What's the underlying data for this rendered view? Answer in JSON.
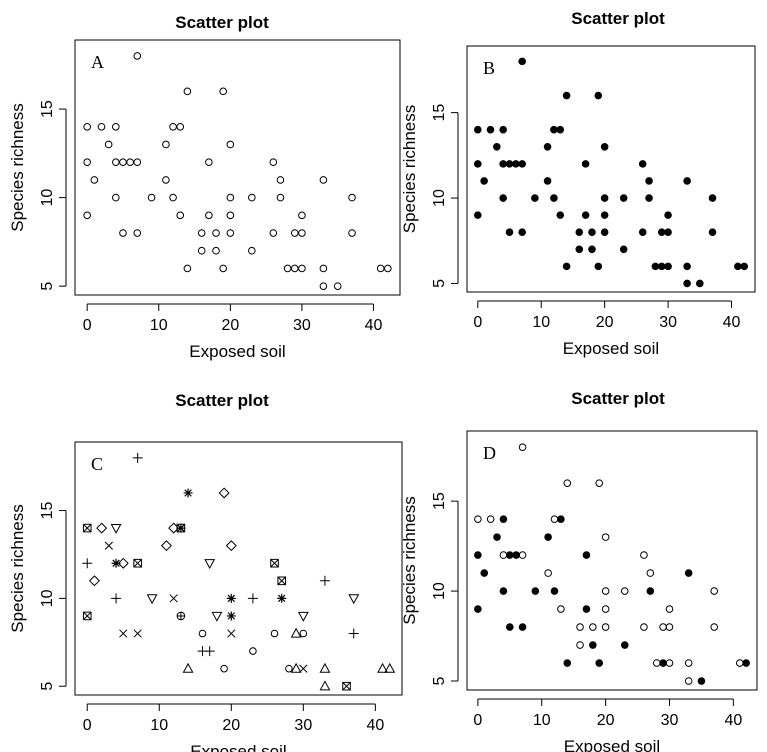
{
  "chart_data": [
    {
      "type": "scatter",
      "panel": "A",
      "title": "Scatter plot",
      "xlabel": "Exposed soil",
      "ylabel": "Species richness",
      "xlim": [
        -1.7,
        43.7
      ],
      "ylim": [
        4.5,
        18.9
      ],
      "xticks": [
        0,
        10,
        20,
        30,
        40
      ],
      "yticks": [
        5,
        10,
        15
      ],
      "grid": false,
      "legend": "none",
      "marker": "open-circle",
      "series": [
        {
          "points": [
            [
              0,
              14
            ],
            [
              0,
              12
            ],
            [
              0,
              9
            ],
            [
              1,
              11
            ],
            [
              2,
              14
            ],
            [
              3,
              13
            ],
            [
              4,
              14
            ],
            [
              4,
              12
            ],
            [
              4,
              10
            ],
            [
              5,
              12
            ],
            [
              5,
              8
            ],
            [
              6,
              12
            ],
            [
              7,
              18
            ],
            [
              7,
              12
            ],
            [
              7,
              8
            ],
            [
              9,
              10
            ],
            [
              11,
              13
            ],
            [
              11,
              11
            ],
            [
              12,
              14
            ],
            [
              12,
              10
            ],
            [
              13,
              14
            ],
            [
              13,
              9
            ],
            [
              14,
              16
            ],
            [
              14,
              6
            ],
            [
              16,
              8
            ],
            [
              16,
              7
            ],
            [
              17,
              12
            ],
            [
              17,
              9
            ],
            [
              18,
              8
            ],
            [
              18,
              7
            ],
            [
              19,
              16
            ],
            [
              19,
              6
            ],
            [
              20,
              13
            ],
            [
              20,
              10
            ],
            [
              20,
              9
            ],
            [
              20,
              8
            ],
            [
              23,
              10
            ],
            [
              23,
              7
            ],
            [
              26,
              12
            ],
            [
              26,
              8
            ],
            [
              27,
              11
            ],
            [
              27,
              10
            ],
            [
              28,
              6
            ],
            [
              29,
              8
            ],
            [
              29,
              6
            ],
            [
              30,
              9
            ],
            [
              30,
              8
            ],
            [
              30,
              6
            ],
            [
              33,
              11
            ],
            [
              33,
              6
            ],
            [
              33,
              5
            ],
            [
              35,
              5
            ],
            [
              37,
              10
            ],
            [
              37,
              8
            ],
            [
              41,
              6
            ],
            [
              42,
              6
            ]
          ]
        }
      ]
    },
    {
      "type": "scatter",
      "panel": "B",
      "title": "Scatter plot",
      "xlabel": "Exposed soil",
      "ylabel": "Species richness",
      "xlim": [
        -1.7,
        43.7
      ],
      "ylim": [
        4.5,
        18.9
      ],
      "xticks": [
        0,
        10,
        20,
        30,
        40
      ],
      "yticks": [
        5,
        10,
        15
      ],
      "grid": false,
      "legend": "none",
      "marker": "filled-circle",
      "series": [
        {
          "points": [
            [
              0,
              14
            ],
            [
              0,
              12
            ],
            [
              0,
              9
            ],
            [
              1,
              11
            ],
            [
              2,
              14
            ],
            [
              3,
              13
            ],
            [
              4,
              14
            ],
            [
              4,
              12
            ],
            [
              4,
              10
            ],
            [
              5,
              12
            ],
            [
              5,
              8
            ],
            [
              6,
              12
            ],
            [
              7,
              18
            ],
            [
              7,
              12
            ],
            [
              7,
              8
            ],
            [
              9,
              10
            ],
            [
              11,
              13
            ],
            [
              11,
              11
            ],
            [
              12,
              14
            ],
            [
              12,
              10
            ],
            [
              13,
              14
            ],
            [
              13,
              9
            ],
            [
              14,
              16
            ],
            [
              14,
              6
            ],
            [
              16,
              8
            ],
            [
              16,
              7
            ],
            [
              17,
              12
            ],
            [
              17,
              9
            ],
            [
              18,
              8
            ],
            [
              18,
              7
            ],
            [
              19,
              16
            ],
            [
              19,
              6
            ],
            [
              20,
              13
            ],
            [
              20,
              10
            ],
            [
              20,
              9
            ],
            [
              20,
              8
            ],
            [
              23,
              10
            ],
            [
              23,
              7
            ],
            [
              26,
              12
            ],
            [
              26,
              8
            ],
            [
              27,
              11
            ],
            [
              27,
              10
            ],
            [
              28,
              6
            ],
            [
              29,
              8
            ],
            [
              29,
              6
            ],
            [
              30,
              9
            ],
            [
              30,
              8
            ],
            [
              30,
              6
            ],
            [
              33,
              11
            ],
            [
              33,
              6
            ],
            [
              33,
              5
            ],
            [
              35,
              5
            ],
            [
              37,
              10
            ],
            [
              37,
              8
            ],
            [
              41,
              6
            ],
            [
              42,
              6
            ]
          ]
        }
      ]
    },
    {
      "type": "scatter",
      "panel": "C",
      "title": "Scatter plot",
      "xlabel": "Exposed soil",
      "ylabel": "Species richness",
      "xlim": [
        -1.7,
        43.7
      ],
      "ylim": [
        4.5,
        18.9
      ],
      "xticks": [
        0,
        10,
        20,
        30,
        40
      ],
      "yticks": [
        5,
        10,
        15
      ],
      "grid": false,
      "legend": "none",
      "series": [
        {
          "marker": "boxed-x",
          "points": [
            [
              0,
              14
            ],
            [
              0,
              9
            ],
            [
              7,
              12
            ],
            [
              13,
              14
            ],
            [
              26,
              12
            ],
            [
              27,
              11
            ],
            [
              36,
              5
            ]
          ]
        },
        {
          "marker": "diamond",
          "points": [
            [
              1,
              11
            ],
            [
              2,
              14
            ],
            [
              5,
              12
            ],
            [
              11,
              13
            ],
            [
              12,
              14
            ],
            [
              19,
              16
            ],
            [
              20,
              13
            ]
          ]
        },
        {
          "marker": "triangle-down",
          "points": [
            [
              4,
              14
            ],
            [
              9,
              10
            ],
            [
              17,
              12
            ],
            [
              18,
              9
            ],
            [
              30,
              9
            ],
            [
              37,
              10
            ]
          ]
        },
        {
          "marker": "asterisk",
          "points": [
            [
              4,
              12
            ],
            [
              13,
              14
            ],
            [
              14,
              16
            ],
            [
              20,
              10
            ],
            [
              20,
              9
            ],
            [
              27,
              10
            ]
          ]
        },
        {
          "marker": "plus",
          "points": [
            [
              0,
              12
            ],
            [
              4,
              10
            ],
            [
              7,
              18
            ],
            [
              16,
              7
            ],
            [
              17,
              7
            ],
            [
              23,
              10
            ],
            [
              33,
              11
            ],
            [
              37,
              8
            ]
          ]
        },
        {
          "marker": "cross",
          "points": [
            [
              3,
              13
            ],
            [
              5,
              8
            ],
            [
              7,
              8
            ],
            [
              12,
              10
            ],
            [
              20,
              8
            ],
            [
              30,
              6
            ]
          ]
        },
        {
          "marker": "circle-plus",
          "points": [
            [
              13,
              9
            ]
          ]
        },
        {
          "marker": "open-circle",
          "points": [
            [
              16,
              8
            ],
            [
              19,
              6
            ],
            [
              23,
              7
            ],
            [
              26,
              8
            ],
            [
              28,
              6
            ],
            [
              30,
              8
            ]
          ]
        },
        {
          "marker": "triangle-up",
          "points": [
            [
              14,
              6
            ],
            [
              29,
              6
            ],
            [
              29,
              8
            ],
            [
              33,
              6
            ],
            [
              33,
              5
            ],
            [
              41,
              6
            ],
            [
              42,
              6
            ]
          ]
        }
      ]
    },
    {
      "type": "scatter",
      "panel": "D",
      "title": "Scatter plot",
      "xlabel": "Exposed soil",
      "ylabel": "Species richness",
      "xlim": [
        -1.7,
        43.7
      ],
      "ylim": [
        4.5,
        18.9
      ],
      "xticks": [
        0,
        10,
        20,
        30,
        40
      ],
      "yticks": [
        5,
        10,
        15
      ],
      "grid": false,
      "legend": "none",
      "series": [
        {
          "marker": "filled-circle",
          "points": [
            [
              0,
              12
            ],
            [
              0,
              9
            ],
            [
              1,
              11
            ],
            [
              3,
              13
            ],
            [
              4,
              14
            ],
            [
              4,
              10
            ],
            [
              5,
              12
            ],
            [
              5,
              8
            ],
            [
              6,
              12
            ],
            [
              7,
              8
            ],
            [
              9,
              10
            ],
            [
              11,
              13
            ],
            [
              12,
              10
            ],
            [
              13,
              14
            ],
            [
              14,
              6
            ],
            [
              17,
              12
            ],
            [
              17,
              9
            ],
            [
              18,
              7
            ],
            [
              19,
              6
            ],
            [
              23,
              7
            ],
            [
              27,
              10
            ],
            [
              29,
              6
            ],
            [
              33,
              11
            ],
            [
              35,
              5
            ],
            [
              42,
              6
            ]
          ]
        },
        {
          "marker": "open-circle",
          "points": [
            [
              0,
              14
            ],
            [
              2,
              14
            ],
            [
              4,
              12
            ],
            [
              7,
              18
            ],
            [
              7,
              12
            ],
            [
              11,
              11
            ],
            [
              12,
              14
            ],
            [
              13,
              9
            ],
            [
              14,
              16
            ],
            [
              16,
              8
            ],
            [
              16,
              7
            ],
            [
              18,
              8
            ],
            [
              19,
              16
            ],
            [
              20,
              13
            ],
            [
              20,
              10
            ],
            [
              20,
              9
            ],
            [
              20,
              8
            ],
            [
              23,
              10
            ],
            [
              26,
              12
            ],
            [
              26,
              8
            ],
            [
              27,
              11
            ],
            [
              28,
              6
            ],
            [
              29,
              8
            ],
            [
              30,
              9
            ],
            [
              30,
              8
            ],
            [
              30,
              6
            ],
            [
              33,
              6
            ],
            [
              33,
              5
            ],
            [
              37,
              10
            ],
            [
              37,
              8
            ],
            [
              41,
              6
            ]
          ]
        }
      ]
    }
  ]
}
